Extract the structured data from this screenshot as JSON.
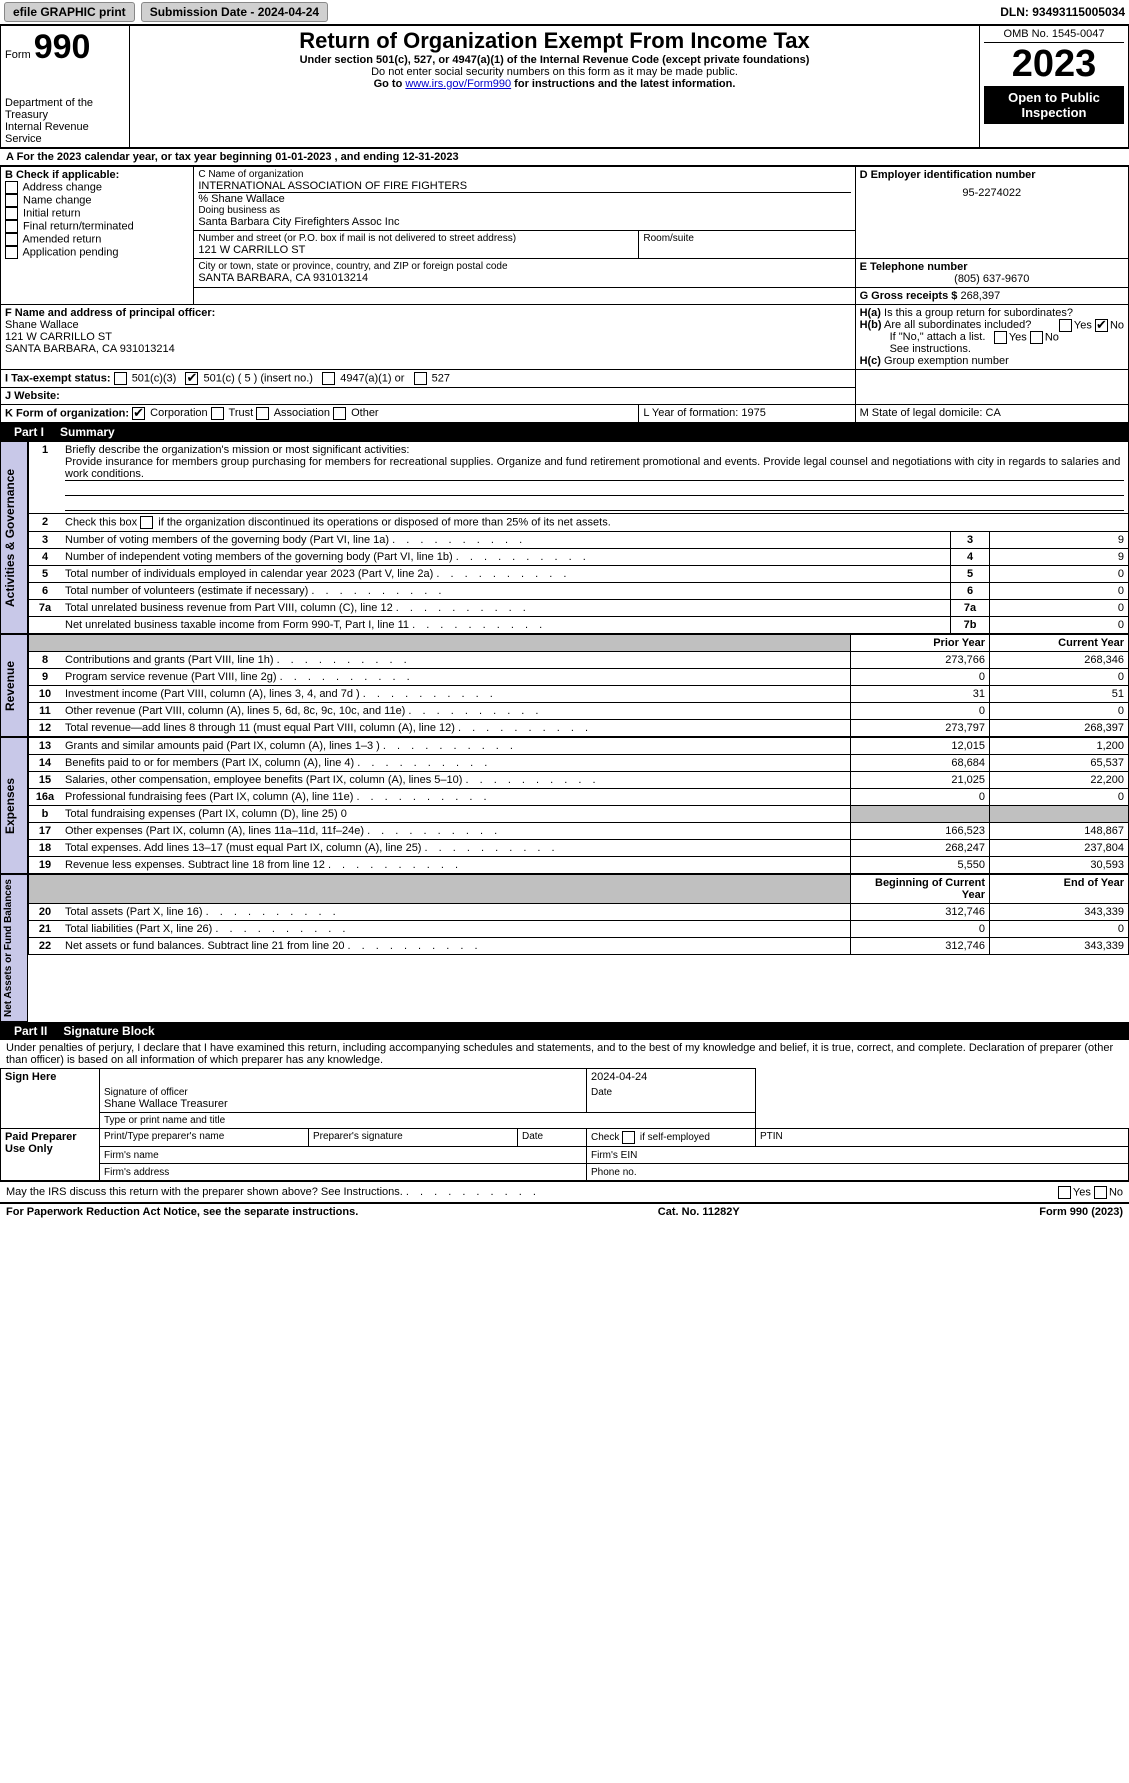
{
  "topbar": {
    "efile_label": "efile GRAPHIC print",
    "submission_label": "Submission Date - 2024-04-24",
    "dln_label": "DLN: 93493115005034"
  },
  "header": {
    "form_prefix": "Form",
    "form_number": "990",
    "dept": "Department of the Treasury\nInternal Revenue Service",
    "title": "Return of Organization Exempt From Income Tax",
    "subtitle": "Under section 501(c), 527, or 4947(a)(1) of the Internal Revenue Code (except private foundations)",
    "ssn_warning": "Do not enter social security numbers on this form as it may be made public.",
    "goto": "Go to ",
    "goto_link": "www.irs.gov/Form990",
    "goto_suffix": " for instructions and the latest information.",
    "omb": "OMB No. 1545-0047",
    "year": "2023",
    "inspection": "Open to Public Inspection"
  },
  "period": {
    "line": "A  For the 2023 calendar year, or tax year beginning 01-01-2023    , and ending 12-31-2023"
  },
  "boxB": {
    "header": "B Check if applicable:",
    "items": [
      "Address change",
      "Name change",
      "Initial return",
      "Final return/terminated",
      "Amended return",
      "Application pending"
    ]
  },
  "boxC": {
    "name_label": "C Name of organization",
    "name": "INTERNATIONAL ASSOCIATION OF FIRE FIGHTERS",
    "care_of": "% Shane Wallace",
    "dba_label": "Doing business as",
    "dba": "Santa Barbara City Firefighters Assoc Inc",
    "street_label": "Number and street (or P.O. box if mail is not delivered to street address)",
    "street": "121 W CARRILLO ST",
    "room_label": "Room/suite",
    "city_label": "City or town, state or province, country, and ZIP or foreign postal code",
    "city": "SANTA BARBARA, CA  931013214"
  },
  "boxD": {
    "label": "D Employer identification number",
    "value": "95-2274022"
  },
  "boxE": {
    "label": "E Telephone number",
    "value": "(805) 637-9670"
  },
  "boxG": {
    "label": "G Gross receipts $",
    "value": "268,397"
  },
  "boxF": {
    "label": "F Name and address of principal officer:",
    "name": "Shane Wallace",
    "street": "121 W CARRILLO ST",
    "city": "SANTA BARBARA, CA  931013214"
  },
  "boxH": {
    "a_label": "H(a)  Is this a group return for subordinates?",
    "b_label": "H(b)  Are all subordinates included?",
    "b_note": "If \"No,\" attach a list. See instructions.",
    "c_label": "H(c)  Group exemption number",
    "yes": "Yes",
    "no": "No"
  },
  "boxI": {
    "label": "I    Tax-exempt status:",
    "opt1": "501(c)(3)",
    "opt2": "501(c) ( 5 ) (insert no.)",
    "opt3": "4947(a)(1) or",
    "opt4": "527"
  },
  "boxJ": {
    "label": "J   Website:"
  },
  "boxK": {
    "label": "K Form of organization:",
    "opts": [
      "Corporation",
      "Trust",
      "Association",
      "Other"
    ]
  },
  "boxL": {
    "label": "L Year of formation:",
    "value": "1975"
  },
  "boxM": {
    "label": "M State of legal domicile:",
    "value": "CA"
  },
  "part1": {
    "header_num": "Part I",
    "header_title": "Summary",
    "line1_label": "1   Briefly describe the organization's mission or most significant activities:",
    "line1_text": "Provide insurance for members group purchasing for members for recreational supplies. Organize and fund retirement promotional and events. Provide legal counsel and negotiations with city in regards to salaries and work conditions.",
    "line2": "2   Check this box      if the organization discontinued its operations or disposed of more than 25% of its net assets.",
    "governance_rows": [
      {
        "n": "3",
        "desc": "Number of voting members of the governing body (Part VI, line 1a)",
        "box": "3",
        "val": "9"
      },
      {
        "n": "4",
        "desc": "Number of independent voting members of the governing body (Part VI, line 1b)",
        "box": "4",
        "val": "9"
      },
      {
        "n": "5",
        "desc": "Total number of individuals employed in calendar year 2023 (Part V, line 2a)",
        "box": "5",
        "val": "0"
      },
      {
        "n": "6",
        "desc": "Total number of volunteers (estimate if necessary)",
        "box": "6",
        "val": "0"
      },
      {
        "n": "7a",
        "desc": "Total unrelated business revenue from Part VIII, column (C), line 12",
        "box": "7a",
        "val": "0"
      },
      {
        "n": "",
        "desc": "Net unrelated business taxable income from Form 990-T, Part I, line 11",
        "box": "7b",
        "val": "0"
      }
    ],
    "col_prior": "Prior Year",
    "col_current": "Current Year",
    "revenue_rows": [
      {
        "n": "8",
        "desc": "Contributions and grants (Part VIII, line 1h)",
        "prior": "273,766",
        "curr": "268,346"
      },
      {
        "n": "9",
        "desc": "Program service revenue (Part VIII, line 2g)",
        "prior": "0",
        "curr": "0"
      },
      {
        "n": "10",
        "desc": "Investment income (Part VIII, column (A), lines 3, 4, and 7d )",
        "prior": "31",
        "curr": "51"
      },
      {
        "n": "11",
        "desc": "Other revenue (Part VIII, column (A), lines 5, 6d, 8c, 9c, 10c, and 11e)",
        "prior": "0",
        "curr": "0"
      },
      {
        "n": "12",
        "desc": "Total revenue—add lines 8 through 11 (must equal Part VIII, column (A), line 12)",
        "prior": "273,797",
        "curr": "268,397"
      }
    ],
    "expense_rows": [
      {
        "n": "13",
        "desc": "Grants and similar amounts paid (Part IX, column (A), lines 1–3 )",
        "prior": "12,015",
        "curr": "1,200"
      },
      {
        "n": "14",
        "desc": "Benefits paid to or for members (Part IX, column (A), line 4)",
        "prior": "68,684",
        "curr": "65,537"
      },
      {
        "n": "15",
        "desc": "Salaries, other compensation, employee benefits (Part IX, column (A), lines 5–10)",
        "prior": "21,025",
        "curr": "22,200"
      },
      {
        "n": "16a",
        "desc": "Professional fundraising fees (Part IX, column (A), line 11e)",
        "prior": "0",
        "curr": "0"
      },
      {
        "n": "b",
        "desc": "Total fundraising expenses (Part IX, column (D), line 25) 0",
        "prior": "",
        "curr": "",
        "gray": true
      },
      {
        "n": "17",
        "desc": "Other expenses (Part IX, column (A), lines 11a–11d, 11f–24e)",
        "prior": "166,523",
        "curr": "148,867"
      },
      {
        "n": "18",
        "desc": "Total expenses. Add lines 13–17 (must equal Part IX, column (A), line 25)",
        "prior": "268,247",
        "curr": "237,804"
      },
      {
        "n": "19",
        "desc": "Revenue less expenses. Subtract line 18 from line 12",
        "prior": "5,550",
        "curr": "30,593"
      }
    ],
    "col_begin": "Beginning of Current Year",
    "col_end": "End of Year",
    "net_rows": [
      {
        "n": "20",
        "desc": "Total assets (Part X, line 16)",
        "prior": "312,746",
        "curr": "343,339"
      },
      {
        "n": "21",
        "desc": "Total liabilities (Part X, line 26)",
        "prior": "0",
        "curr": "0"
      },
      {
        "n": "22",
        "desc": "Net assets or fund balances. Subtract line 21 from line 20",
        "prior": "312,746",
        "curr": "343,339"
      }
    ],
    "vtabs": {
      "gov": "Activities & Governance",
      "rev": "Revenue",
      "exp": "Expenses",
      "net": "Net Assets or Fund Balances"
    }
  },
  "part2": {
    "header_num": "Part II",
    "header_title": "Signature Block",
    "declaration": "Under penalties of perjury, I declare that I have examined this return, including accompanying schedules and statements, and to the best of my knowledge and belief, it is true, correct, and complete. Declaration of preparer (other than officer) is based on all information of which preparer has any knowledge.",
    "sign_here": "Sign Here",
    "sig_officer": "Signature of officer",
    "officer_name": "Shane Wallace  Treasurer",
    "type_name": "Type or print name and title",
    "date": "2024-04-24",
    "date_label": "Date",
    "paid": "Paid Preparer Use Only",
    "prep_name": "Print/Type preparer's name",
    "prep_sig": "Preparer's signature",
    "check_self": "Check         if self-employed",
    "ptin": "PTIN",
    "firm_name": "Firm's name",
    "firm_ein": "Firm's EIN",
    "firm_addr": "Firm's address",
    "phone": "Phone no.",
    "discuss": "May the IRS discuss this return with the preparer shown above? See Instructions."
  },
  "footer": {
    "paperwork": "For Paperwork Reduction Act Notice, see the separate instructions.",
    "cat": "Cat. No. 11282Y",
    "form": "Form 990 (2023)"
  }
}
